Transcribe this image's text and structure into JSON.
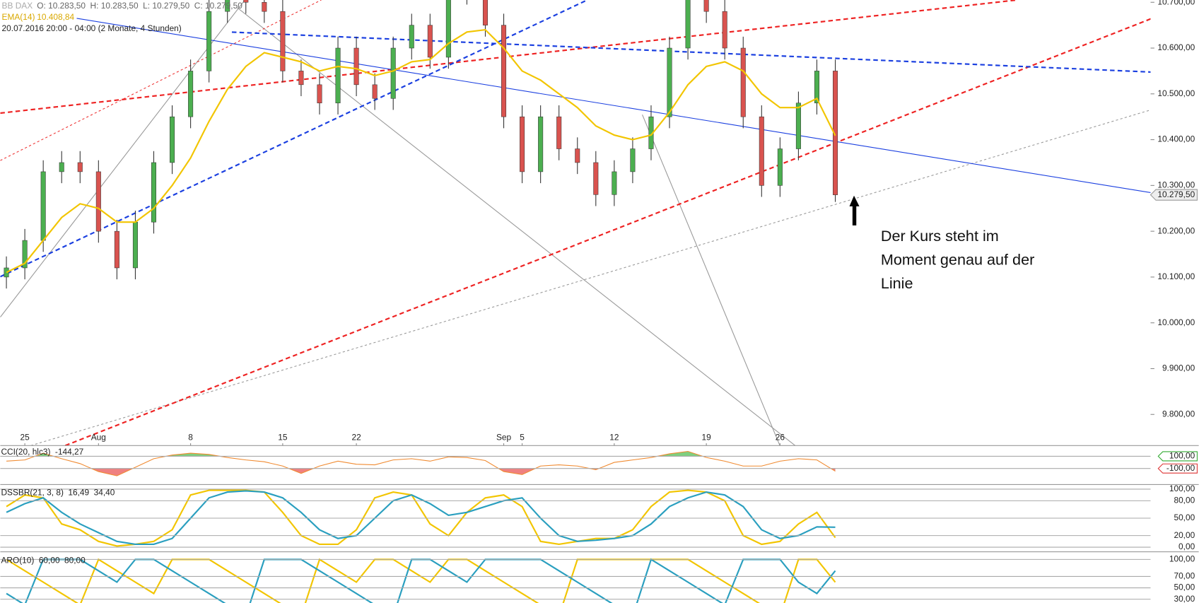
{
  "header": {
    "symbol": "BB DAX",
    "ohlc": "O: 10.283,50  H: 10.283,50  L: 10.279,50  C: 10.279,50",
    "ema_value": "10.408,84",
    "range": "20.07.2016 20:00 - 04:00 (2 Monate, 4 Stunden)"
  },
  "annotation": [
    "Der Kurs steht im",
    "Moment genau auf der",
    "Linie"
  ],
  "chart_data": [
    {
      "type": "candlestick",
      "categories": [
        null,
        "25",
        null,
        null,
        null,
        "Aug",
        null,
        null,
        null,
        null,
        "8",
        null,
        null,
        null,
        null,
        "15",
        null,
        null,
        null,
        "22",
        null,
        null,
        null,
        null,
        null,
        null,
        null,
        "Sep",
        "5",
        null,
        null,
        null,
        null,
        "12",
        null,
        null,
        null,
        null,
        "19",
        null,
        null,
        null,
        "26",
        null,
        null,
        null
      ],
      "open": [
        10100,
        10120,
        10180,
        10330,
        10350,
        10330,
        10200,
        10120,
        10220,
        10350,
        10450,
        10550,
        10680,
        10720,
        10700,
        10680,
        10550,
        10520,
        10480,
        10600,
        10520,
        10490,
        10600,
        10650,
        10580,
        10720,
        10720,
        10650,
        10450,
        10330,
        10450,
        10380,
        10350,
        10280,
        10330,
        10380,
        10450,
        10600,
        10710,
        10680,
        10600,
        10450,
        10300,
        10380,
        10480,
        10550
      ],
      "high": [
        10145,
        10205,
        10355,
        10375,
        10375,
        10355,
        10225,
        10245,
        10375,
        10475,
        10575,
        10705,
        10745,
        10745,
        10725,
        10705,
        10575,
        10545,
        10625,
        10625,
        10545,
        10625,
        10675,
        10675,
        10745,
        10745,
        10745,
        10675,
        10475,
        10475,
        10475,
        10405,
        10375,
        10355,
        10405,
        10475,
        10625,
        10735,
        10735,
        10705,
        10625,
        10475,
        10405,
        10505,
        10575,
        10575
      ],
      "low": [
        10075,
        10095,
        10155,
        10305,
        10305,
        10175,
        10095,
        10095,
        10195,
        10325,
        10425,
        10525,
        10655,
        10675,
        10655,
        10525,
        10495,
        10455,
        10455,
        10495,
        10465,
        10465,
        10575,
        10555,
        10555,
        10695,
        10625,
        10425,
        10305,
        10305,
        10355,
        10325,
        10255,
        10255,
        10305,
        10355,
        10425,
        10575,
        10655,
        10575,
        10425,
        10275,
        10275,
        10355,
        10455,
        10264
      ],
      "close": [
        10120,
        10180,
        10330,
        10350,
        10330,
        10200,
        10120,
        10220,
        10350,
        10450,
        10550,
        10680,
        10720,
        10700,
        10680,
        10550,
        10520,
        10480,
        10600,
        10520,
        10490,
        10600,
        10650,
        10580,
        10720,
        10720,
        10650,
        10450,
        10330,
        10450,
        10380,
        10350,
        10280,
        10330,
        10380,
        10450,
        10600,
        10710,
        10680,
        10600,
        10450,
        10300,
        10380,
        10480,
        10550,
        10279.5
      ],
      "series": [
        {
          "name": "EMA(14)",
          "color": "#f2c500",
          "values": [
            10110,
            10130,
            10180,
            10230,
            10260,
            10250,
            10220,
            10220,
            10250,
            10300,
            10360,
            10440,
            10510,
            10560,
            10590,
            10580,
            10570,
            10550,
            10560,
            10555,
            10540,
            10550,
            10570,
            10575,
            10610,
            10635,
            10640,
            10600,
            10550,
            10530,
            10500,
            10470,
            10430,
            10410,
            10400,
            10410,
            10460,
            10520,
            10560,
            10570,
            10550,
            10500,
            10470,
            10470,
            10490,
            10408.84
          ]
        }
      ],
      "last_label": "10.279,50",
      "ylim": [
        9732,
        10705
      ],
      "yticks": [
        {
          "value": 9800,
          "label": "9.800,00"
        },
        {
          "value": 9900,
          "label": "9.900,00"
        },
        {
          "value": 10000,
          "label": "10.000,00"
        },
        {
          "value": 10100,
          "label": "10.100,00"
        },
        {
          "value": 10200,
          "label": "10.200,00"
        },
        {
          "value": 10300,
          "label": "10.300,00"
        },
        {
          "value": 10400,
          "label": "10.400,00"
        },
        {
          "value": 10500,
          "label": "10.500,00"
        },
        {
          "value": 10600,
          "label": "10.600,00"
        },
        {
          "value": 10700,
          "label": "10.700,00"
        }
      ]
    },
    {
      "type": "cci",
      "title": "CCI(20, hlc3)",
      "current_labels": [
        "-144,27"
      ],
      "series": [
        {
          "name": "CCI",
          "color": "#f08a30",
          "values": [
            20,
            40,
            150,
            60,
            -20,
            -150,
            -220,
            -80,
            60,
            120,
            150,
            130,
            80,
            40,
            10,
            -60,
            -180,
            -60,
            20,
            -30,
            -40,
            40,
            60,
            20,
            90,
            80,
            30,
            -150,
            -200,
            -60,
            -40,
            -60,
            -120,
            0,
            40,
            80,
            140,
            180,
            80,
            20,
            -60,
            -60,
            20,
            60,
            40,
            -144.27
          ]
        }
      ],
      "ylim": [
        -350,
        275
      ],
      "yticks": [
        {
          "value": 100,
          "label": "100,00"
        },
        {
          "value": -100,
          "label": "-100,00"
        }
      ]
    },
    {
      "type": "line",
      "title": "DSSBR(21, 3, 8)",
      "current_labels": [
        "16,49",
        "34,40"
      ],
      "series": [
        {
          "name": "DSS",
          "color": "#f2c500",
          "values": [
            70,
            90,
            85,
            40,
            30,
            10,
            2,
            5,
            10,
            30,
            90,
            98,
            98,
            98,
            95,
            60,
            20,
            5,
            5,
            30,
            85,
            95,
            90,
            40,
            20,
            60,
            85,
            90,
            70,
            10,
            5,
            10,
            15,
            15,
            30,
            70,
            95,
            98,
            95,
            80,
            20,
            5,
            10,
            40,
            60,
            16.49
          ]
        },
        {
          "name": "Signal",
          "color": "#2a9fbf",
          "values": [
            60,
            75,
            85,
            60,
            40,
            25,
            10,
            5,
            5,
            15,
            50,
            85,
            95,
            97,
            95,
            85,
            60,
            30,
            15,
            20,
            50,
            80,
            90,
            75,
            55,
            60,
            70,
            80,
            85,
            50,
            20,
            10,
            12,
            15,
            20,
            40,
            70,
            85,
            95,
            90,
            70,
            30,
            15,
            20,
            35,
            34.4
          ]
        }
      ],
      "ylim": [
        -5.3,
        105.3
      ],
      "yticks": [
        {
          "value": 100,
          "label": "100,00"
        },
        {
          "value": 80,
          "label": "80,00"
        },
        {
          "value": 50,
          "label": "50,00"
        },
        {
          "value": 20,
          "label": "20,00"
        },
        {
          "value": 0,
          "label": "0,00"
        }
      ]
    },
    {
      "type": "line",
      "title": "ARO(10)",
      "current_labels": [
        "60,00",
        "80,00"
      ],
      "series": [
        {
          "name": "Aroon Up",
          "color": "#f2c500",
          "values": [
            100,
            80,
            60,
            40,
            20,
            100,
            80,
            60,
            40,
            100,
            100,
            100,
            80,
            60,
            40,
            20,
            0,
            100,
            80,
            60,
            100,
            100,
            80,
            60,
            100,
            100,
            80,
            60,
            40,
            20,
            0,
            100,
            100,
            100,
            100,
            100,
            100,
            100,
            80,
            60,
            40,
            20,
            0,
            100,
            100,
            60
          ]
        },
        {
          "name": "Aroon Down",
          "color": "#2a9fbf",
          "values": [
            40,
            20,
            100,
            100,
            100,
            80,
            60,
            100,
            100,
            80,
            60,
            40,
            20,
            0,
            100,
            100,
            100,
            80,
            60,
            40,
            20,
            0,
            100,
            100,
            80,
            60,
            100,
            100,
            100,
            100,
            80,
            60,
            40,
            20,
            0,
            100,
            80,
            60,
            40,
            20,
            100,
            100,
            100,
            60,
            40,
            80
          ]
        }
      ],
      "ylim": [
        23.3,
        109.4
      ],
      "yticks": [
        {
          "value": 100,
          "label": "100,00"
        },
        {
          "value": 70,
          "label": "70,00"
        },
        {
          "value": 50,
          "label": "50,00"
        },
        {
          "value": 30,
          "label": "30,00"
        }
      ]
    }
  ]
}
